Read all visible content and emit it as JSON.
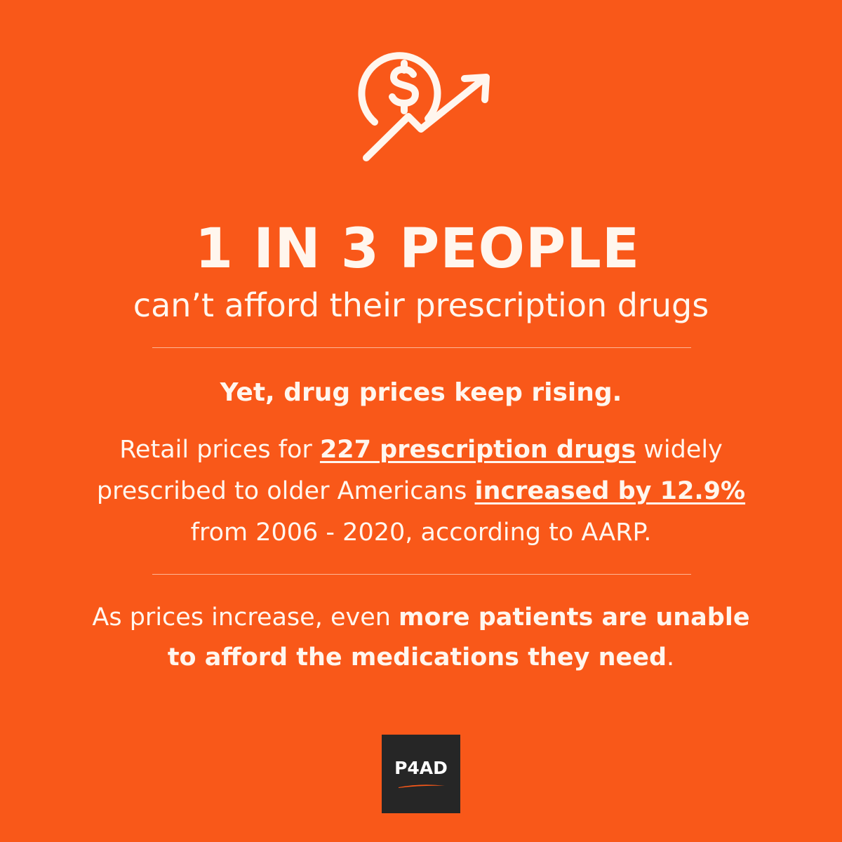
{
  "icons": {
    "header_icon": "dollar-rising-trend-icon"
  },
  "colors": {
    "background": "#F95819",
    "text": "#FFF6EE",
    "logo_background": "#262626",
    "logo_swoosh": "#F95819"
  },
  "headline": "1 IN 3 PEOPLE",
  "subhead": "can’t afford their prescription drugs",
  "lead": "Yet, drug prices keep rising.",
  "paragraph": {
    "part1": "Retail prices for ",
    "emph1": "227 prescription drugs",
    "part2": " widely prescribed to older Americans ",
    "emph2": "increased by 12.9%",
    "part3": " from 2006 - 2020, according to AARP."
  },
  "closing": {
    "part1": "As prices increase, even ",
    "bold": "more patients are unable to afford the medications they need",
    "part2": "."
  },
  "logo": {
    "text": "P4AD"
  }
}
